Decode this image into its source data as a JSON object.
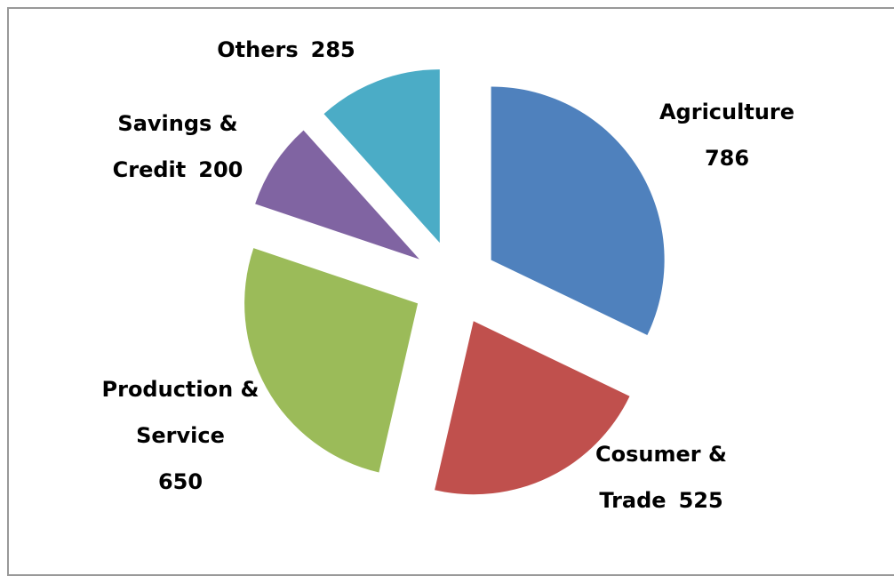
{
  "chart_data": {
    "type": "pie",
    "categories": [
      "Agriculture",
      "Cosumer & Trade",
      "Production & Service",
      "Savings & Credit",
      "Others"
    ],
    "values": [
      786,
      525,
      650,
      200,
      285
    ],
    "colors": [
      "#4f81bd",
      "#c0504d",
      "#9bbb59",
      "#8064a2",
      "#4bacc6"
    ],
    "exploded": true
  }
}
